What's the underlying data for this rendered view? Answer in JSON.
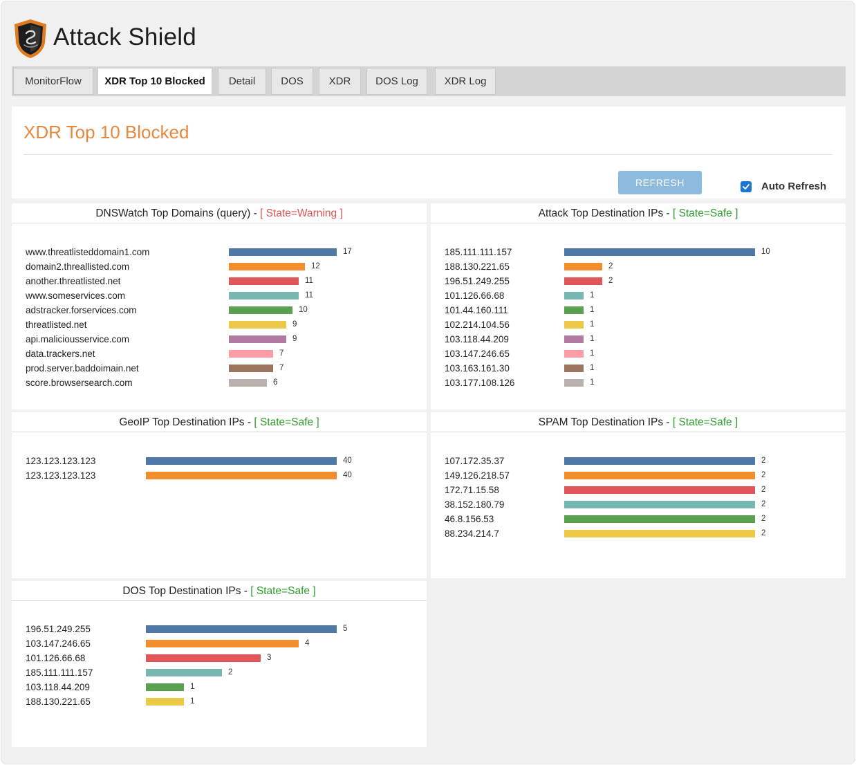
{
  "app": {
    "title": "Attack Shield"
  },
  "tabs": [
    {
      "label": "MonitorFlow",
      "active": false
    },
    {
      "label": "XDR Top 10 Blocked",
      "active": true
    },
    {
      "label": "Detail",
      "active": false
    },
    {
      "label": "DOS",
      "active": false
    },
    {
      "label": "XDR",
      "active": false
    },
    {
      "label": "DOS Log",
      "active": false
    },
    {
      "label": "XDR Log",
      "active": false
    }
  ],
  "page": {
    "title": "XDR Top 10 Blocked",
    "refresh_label": "REFRESH",
    "auto_refresh_label": "Auto Refresh",
    "auto_refresh_checked": true
  },
  "palette": [
    "#4e79a7",
    "#f28e2b",
    "#e15759",
    "#76b7b2",
    "#59a14f",
    "#edc948",
    "#b07aa1",
    "#ff9da7",
    "#9c755f",
    "#bab0ac"
  ],
  "chart_data": [
    {
      "id": "dnswatch",
      "type": "bar",
      "title": "DNSWatch Top Domains (query) - ",
      "state": "[ State=Warning ]",
      "state_kind": "warning",
      "categories": [
        "www.threatlisteddomain1.com",
        "domain2.threallisted.com",
        "another.threatlisted.net",
        "www.someservices.com",
        "adstracker.forservices.com",
        "threatlisted.net",
        "api.maliciousservice.com",
        "data.trackers.net",
        "prod.server.baddoimain.net",
        "score.browsersearch.com"
      ],
      "values": [
        17,
        12,
        11,
        11,
        10,
        9,
        9,
        7,
        7,
        6
      ]
    },
    {
      "id": "attack",
      "type": "bar",
      "title": "Attack Top Destination IPs - ",
      "state": "[ State=Safe ]",
      "state_kind": "safe",
      "categories": [
        "185.111.111.157",
        "188.130.221.65",
        "196.51.249.255",
        "101.126.66.68",
        "101.44.160.111",
        "102.214.104.56",
        "103.118.44.209",
        "103.147.246.65",
        "103.163.161.30",
        "103.177.108.126"
      ],
      "values": [
        10,
        2,
        2,
        1,
        1,
        1,
        1,
        1,
        1,
        1
      ]
    },
    {
      "id": "geoip",
      "type": "bar",
      "title": "GeoIP Top Destination IPs - ",
      "state": "[ State=Safe ]",
      "state_kind": "safe",
      "categories": [
        "123.123.123.123",
        "123.123.123.123"
      ],
      "values": [
        40,
        40
      ]
    },
    {
      "id": "spam",
      "type": "bar",
      "title": "SPAM Top Destination IPs - ",
      "state": "[ State=Safe ]",
      "state_kind": "safe",
      "categories": [
        "107.172.35.37",
        "149.126.218.57",
        "172.71.15.58",
        "38.152.180.79",
        "46.8.156.53",
        "88.234.214.7"
      ],
      "values": [
        2,
        2,
        2,
        2,
        2,
        2
      ]
    },
    {
      "id": "dos",
      "type": "bar",
      "title": "DOS Top Destination IPs - ",
      "state": "[ State=Safe ]",
      "state_kind": "safe",
      "categories": [
        "196.51.249.255",
        "103.147.246.65",
        "101.126.66.68",
        "185.111.111.157",
        "103.118.44.209",
        "188.130.221.65"
      ],
      "values": [
        5,
        4,
        3,
        2,
        1,
        1
      ]
    }
  ]
}
